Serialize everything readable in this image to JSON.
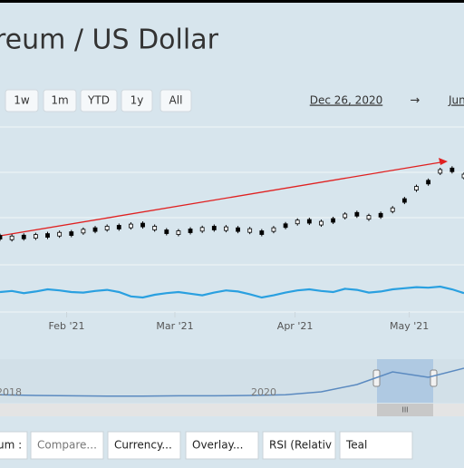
{
  "header": {
    "title": "reum / US Dollar"
  },
  "range_buttons": [
    "1w",
    "1m",
    "YTD",
    "1y",
    "All"
  ],
  "date_range": {
    "from": "Dec 26, 2020",
    "arrow": "→",
    "to": "Jun"
  },
  "chart_data": {
    "type": "candlestick",
    "xlim": [
      0,
      39
    ],
    "xticks": [
      {
        "value": 5.6,
        "label": "Feb '21"
      },
      {
        "value": 14.7,
        "label": "Mar '21"
      },
      {
        "value": 24.8,
        "label": "Apr '21"
      },
      {
        "value": 34.4,
        "label": "May '21"
      }
    ],
    "ylim": [
      0,
      4500
    ],
    "values": [
      900,
      880,
      910,
      930,
      960,
      1000,
      1020,
      1100,
      1150,
      1200,
      1230,
      1270,
      1300,
      1200,
      1080,
      1050,
      1110,
      1160,
      1200,
      1180,
      1150,
      1120,
      1050,
      1150,
      1280,
      1400,
      1420,
      1360,
      1450,
      1600,
      1650,
      1550,
      1620,
      1800,
      2100,
      2500,
      2700,
      3050,
      3100,
      2900
    ],
    "color": "#000000",
    "trend_color": "#e02020",
    "rsi": {
      "ylim": [
        0,
        100
      ],
      "color": "#2aa0e0",
      "values": [
        50,
        52,
        48,
        51,
        55,
        53,
        50,
        49,
        52,
        54,
        50,
        42,
        40,
        45,
        48,
        50,
        47,
        44,
        49,
        53,
        51,
        46,
        40,
        44,
        49,
        53,
        55,
        52,
        50,
        56,
        54,
        49,
        51,
        55,
        57,
        59,
        58,
        60,
        55,
        48
      ]
    },
    "navigator": {
      "labels": [
        "2018",
        "2020"
      ],
      "ylim": [
        0,
        100
      ],
      "color": "#5b8ac0",
      "values": [
        12,
        10,
        9,
        8,
        8,
        9,
        9,
        10,
        12,
        20,
        40,
        75,
        60,
        85
      ]
    }
  },
  "toolbar": [
    "um :",
    "Compare...",
    "Currency...",
    "Overlay...",
    "RSI (Relativ",
    "Teal"
  ]
}
